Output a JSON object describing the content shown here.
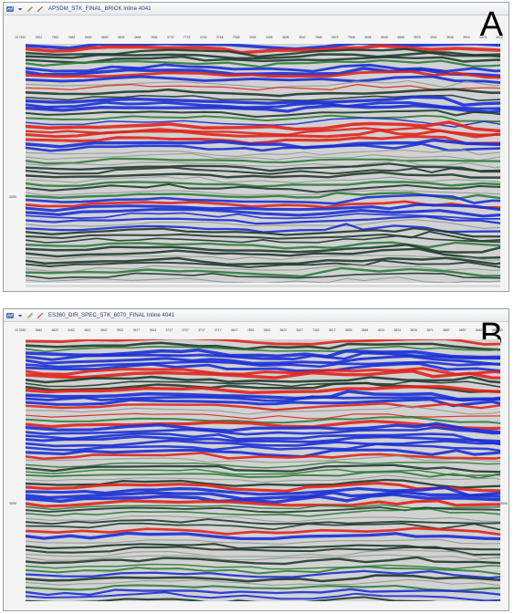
{
  "panels": [
    {
      "id": "A",
      "window_title": "APSDM_STK_FINAL_BRICK Inline 4041",
      "panel_letter": "A",
      "trace_labels": [
        "10 7512",
        "2522",
        "7962",
        "7662",
        "2628",
        "3659",
        "3676",
        "3648",
        "7636",
        "3778",
        "7778",
        "3746",
        "3748",
        "7968",
        "3904",
        "3408",
        "3628",
        "3942",
        "7668",
        "3678",
        "7948",
        "3928",
        "3548",
        "3868",
        "3978",
        "3942",
        "3948",
        "3916",
        "3578",
        "3816"
      ],
      "time_label_left": "3000"
    },
    {
      "id": "B",
      "window_title": "ES360_DIR_SPEC_STK_6070_FINAL Inline 4041",
      "panel_letter": "B",
      "trace_labels": [
        "10 3332",
        "3562",
        "3622",
        "3462",
        "3621",
        "3642",
        "3521",
        "3677",
        "3643",
        "3717",
        "3707",
        "3717",
        "3717",
        "3627",
        "7892",
        "3462",
        "3622",
        "3627",
        "7462",
        "3617",
        "3828",
        "3848",
        "3613",
        "3824",
        "3826",
        "3871",
        "3867",
        "3857",
        "3845",
        "3868 10"
      ],
      "time_label_left": "3000",
      "time_label_right": "3000"
    }
  ],
  "icons": [
    "seismic-app-icon",
    "dropdown-arrow-icon",
    "pencil-icon",
    "brush-icon"
  ],
  "colors": {
    "positive": "#e0241b",
    "negative": "#1a2fd6",
    "background": "#d2d2d2",
    "green": "#2e7d3a",
    "dark": "#1f3b2c"
  }
}
